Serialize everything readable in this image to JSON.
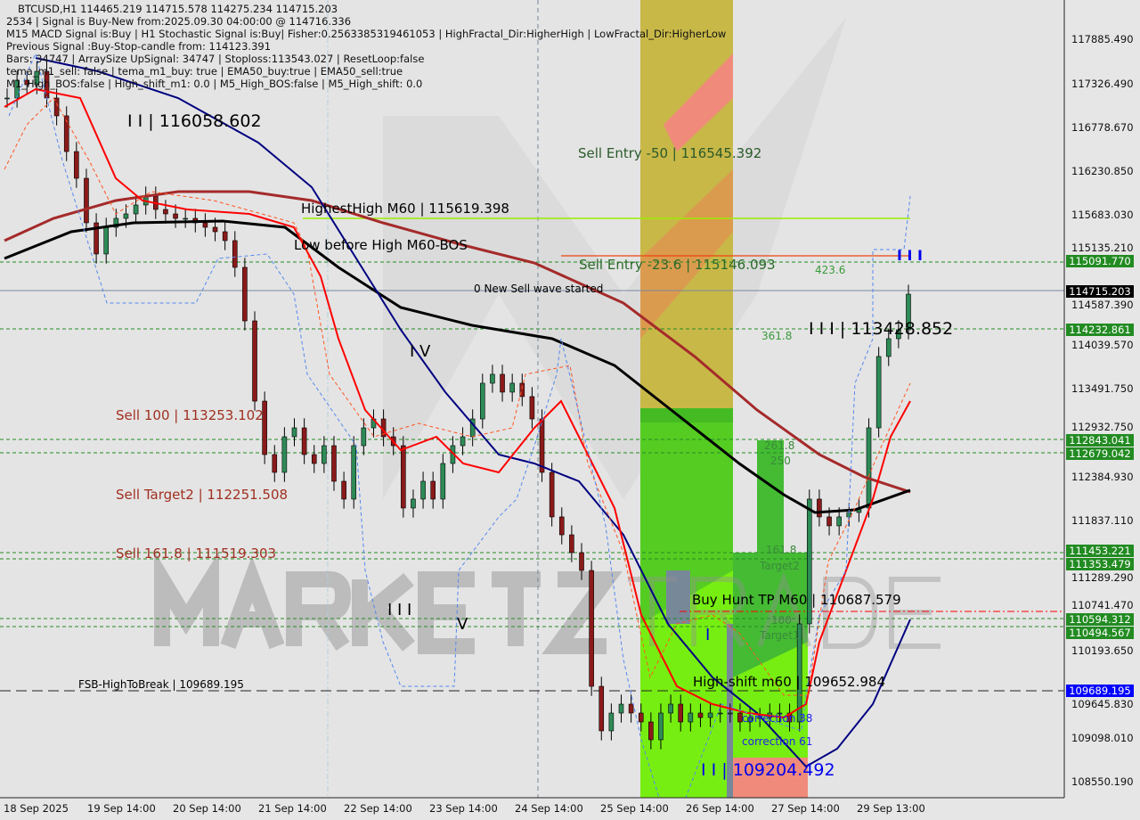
{
  "header": {
    "symbol_line": "BTCUSD,H1  114465.219 114715.578 114275.234 114715.203",
    "info_lines": [
      "2534 | Signal is Buy-New from:2025.09.30 04:00:00 @ 114716.336",
      "M15 MACD Signal is:Buy | H1 Stochastic Signal is:Buy| Fisher:0.2563385319461053 | HighFractal_Dir:HigherHigh | LowFractal_Dir:HigherLow",
      "Previous Signal :Buy-Stop-candle from: 114123.391",
      "Bars: 34747 | ArraySize UpSignal: 34747 | Stoploss:113543.027 | ResetLoop:false",
      "tema_m1_sell: false | tema_m1_buy: true | EMA50_buy:true | EMA50_sell:true",
      "M1_High_BOS:false | High_shift_m1: 0.0 | M5_High_BOS:false | M5_High_shift: 0.0"
    ]
  },
  "annotations": {
    "wave_ii_top": "I I | 116058.602",
    "highest_high": "HighestHigh   M60 | 115619.398",
    "low_before_high": "Low before High   M60-BOS",
    "sell_entry_50": "Sell Entry -50 | 116545.392",
    "sell_entry_236": "Sell Entry -23.6 | 115146.093",
    "fib_4236": "423.6",
    "new_sell_wave": "0 New Sell wave started",
    "fib_3618": "361.8",
    "wave_iii_right": "I I I | 113428.852",
    "wave_iv": "I V",
    "sell_100": "Sell 100 | 113253.102",
    "fib_2618": "261.8",
    "fib_250": "250",
    "sell_target2": "Sell Target2 | 112251.508",
    "sell_1618": "Sell 161.8 | 111519.303",
    "fib_1618": "161.8",
    "target2": "Target2",
    "buy_hunt": "Buy Hunt TP M60 | 110687.579",
    "wave_iii_left": "I I I",
    "wave_v": "V",
    "fib_100": "100",
    "target1": "Target1",
    "wave_i": "I",
    "fsb": "FSB-HighToBreak | 109689.195",
    "high_shift": "High-shift m60 | 109652.984",
    "correction_38": "correction 38",
    "correction_61": "correction 61",
    "wave_ii_low": "I I | 109204.492",
    "wave_iii_top_marker": "I I I",
    "watermark": "MARKETZ TRADE"
  },
  "colors": {
    "background": "#e6e6e6",
    "bull_candle": "#2e8b57",
    "bear_candle": "#8b1a1a",
    "ema_fast": "#ff0000",
    "ema_mid": "#000080",
    "ema_slow": "#000000",
    "ema_long": "#a52a2a",
    "tag_green": "#228b22",
    "tag_black": "#000000",
    "tag_blue": "#0000ff",
    "buy_zone": "#55dd22",
    "sell_zone": "#c8b848"
  },
  "chart_data": {
    "type": "candlestick",
    "title": "BTCUSD,H1",
    "ylim": [
      108300,
      118300
    ],
    "y_ticks": [
      "117885.490",
      "117326.490",
      "116778.670",
      "116230.850",
      "115683.030",
      "115135.210",
      "114587.390",
      "114039.570",
      "113491.750",
      "112932.750",
      "112384.930",
      "111837.110",
      "111289.290",
      "110741.470",
      "110193.650",
      "109645.830",
      "109098.010",
      "108550.190"
    ],
    "x_ticks": [
      "18 Sep 2025",
      "19 Sep 14:00",
      "20 Sep 14:00",
      "21 Sep 14:00",
      "22 Sep 14:00",
      "23 Sep 14:00",
      "24 Sep 14:00",
      "25 Sep 14:00",
      "26 Sep 14:00",
      "27 Sep 14:00",
      "29 Sep 13:00"
    ],
    "price_tags": [
      {
        "value": "115091.770",
        "price": 115091.77,
        "color": "#228b22"
      },
      {
        "value": "114715.203",
        "price": 114715.203,
        "color": "#000000"
      },
      {
        "value": "114232.861",
        "price": 114232.861,
        "color": "#228b22"
      },
      {
        "value": "112843.041",
        "price": 112843.041,
        "color": "#228b22"
      },
      {
        "value": "112679.042",
        "price": 112679.042,
        "color": "#228b22"
      },
      {
        "value": "111453.221",
        "price": 111453.221,
        "color": "#228b22"
      },
      {
        "value": "111353.479",
        "price": 111353.479,
        "color": "#228b22"
      },
      {
        "value": "110594.312",
        "price": 110594.312,
        "color": "#228b22"
      },
      {
        "value": "110494.567",
        "price": 110494.567,
        "color": "#228b22"
      },
      {
        "value": "109689.195",
        "price": 109689.195,
        "color": "#0000ff"
      }
    ],
    "closes_approx": [
      117146,
      117370,
      117314,
      117482,
      117146,
      116922,
      116473,
      116137,
      115577,
      115185,
      115521,
      115633,
      115689,
      115801,
      115913,
      115745,
      115689,
      115633,
      115633,
      115577,
      115521,
      115465,
      115353,
      115017,
      114344,
      113335,
      112663,
      112439,
      112887,
      112999,
      112663,
      112551,
      112775,
      112327,
      112103,
      112775,
      112999,
      113111,
      112887,
      112775,
      111991,
      112103,
      112327,
      112103,
      112551,
      112775,
      112887,
      113111,
      113560,
      113672,
      113448,
      113560,
      113392,
      113111,
      112439,
      111879,
      111654,
      111430,
      111206,
      109749,
      109189,
      109413,
      109525,
      109413,
      109301,
      109077,
      109413,
      109525,
      109301,
      109413,
      109357,
      109413,
      109413,
      109413,
      109301,
      109357,
      109357,
      109413,
      109413,
      109301,
      110534,
      112103,
      111879,
      111767,
      111879,
      111935,
      111991,
      112999,
      113896,
      114120,
      114232,
      114680
    ]
  }
}
